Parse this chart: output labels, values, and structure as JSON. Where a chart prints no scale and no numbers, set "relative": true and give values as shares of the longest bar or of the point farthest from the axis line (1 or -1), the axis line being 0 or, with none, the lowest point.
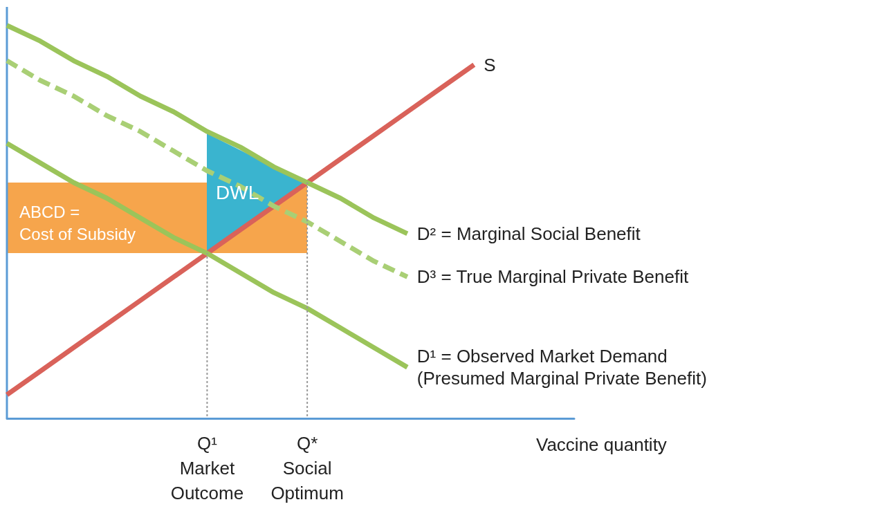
{
  "chart_data": {
    "type": "line",
    "relative": true,
    "categories": [
      null,
      null,
      null,
      null,
      null,
      null,
      "Q¹\nMarket\nOutcome",
      null,
      null,
      "Q*\nSocial\nOptimum",
      null,
      null,
      null,
      null,
      null,
      null,
      null,
      null
    ],
    "xlabel": "Vaccine quantity",
    "grid": false,
    "legend": false,
    "marker": "none",
    "line_style": "solid",
    "annotations": [
      "DWL",
      "ABCD =\nCost of Subsidy"
    ],
    "series": [
      {
        "type": "line",
        "color": "#999999",
        "line_style": "dotted",
        "x": [
          "Q¹\nMarket\nOutcome",
          "Q¹\nMarket\nOutcome"
        ],
        "values": [
          0,
          0.42
        ]
      },
      {
        "type": "line",
        "color": "#999999",
        "line_style": "dotted",
        "x": [
          "Q*\nSocial\nOptimum",
          "Q*\nSocial\nOptimum"
        ],
        "values": [
          0,
          0.6
        ]
      },
      {
        "name": "S",
        "color": "#d9625a",
        "values": [
          0.06,
          0.12,
          0.18,
          0.24,
          0.3,
          0.36,
          0.42,
          0.48,
          0.54,
          0.6,
          0.66,
          0.72,
          0.78,
          0.84,
          0.9,
          null,
          null,
          null
        ]
      },
      {
        "name": "D² = Marginal Social Benefit",
        "color": "#9bc45a",
        "values": [
          1.0,
          0.96,
          0.91,
          0.87,
          0.82,
          0.78,
          0.73,
          0.69,
          0.64,
          0.6,
          0.56,
          0.51,
          0.47,
          null,
          null,
          null,
          null,
          null
        ]
      },
      {
        "name": "D³ = True Marginal Private Benefit",
        "color": "#a9cf75",
        "line_style": "dashed",
        "values": [
          0.91,
          0.86,
          0.82,
          0.77,
          0.73,
          0.68,
          0.63,
          0.59,
          0.54,
          0.5,
          0.45,
          0.4,
          0.36,
          null,
          null,
          null,
          null,
          null
        ]
      },
      {
        "name": "D¹ = Observed Market Demand\n(Presumed Marginal Private Benefit)",
        "color": "#9bc45a",
        "values": [
          0.7,
          0.65,
          0.6,
          0.56,
          0.51,
          0.46,
          0.42,
          0.37,
          0.32,
          0.28,
          0.23,
          0.18,
          0.13,
          null,
          null,
          null,
          null,
          null
        ]
      }
    ]
  }
}
